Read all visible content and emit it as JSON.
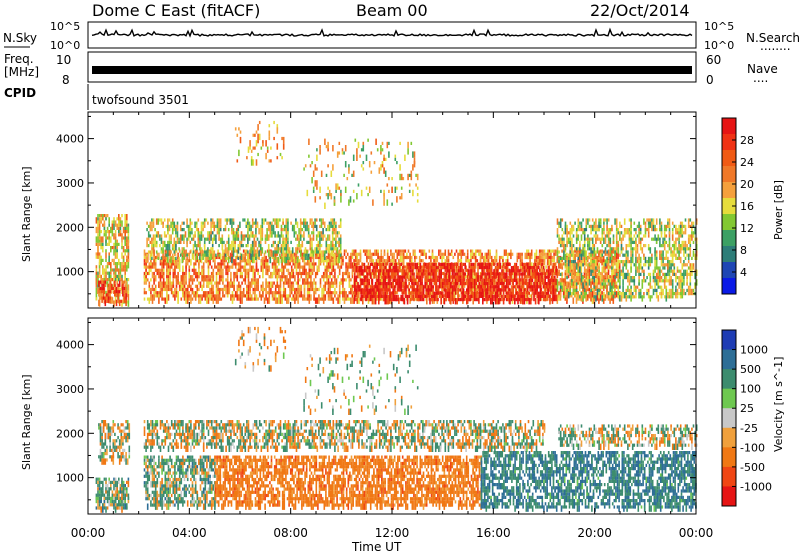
{
  "header": {
    "title_left": "Dome C East (fitACF)",
    "title_center": "Beam 00",
    "title_right": "22/Oct/2014"
  },
  "strips": {
    "nsky_label": "N.Sky",
    "nsky_top_tick": "10^5",
    "nsky_bottom_tick": "10^0",
    "nsearch_label": "N.Search",
    "nsearch_marker": "........",
    "freq_label_line1": "Freq.",
    "freq_label_line2": "[MHz]",
    "freq_tick_top": "10",
    "freq_tick_bottom": "8",
    "nave_tick_top": "60",
    "nave_tick_bottom": "0",
    "nave_label": "Nave",
    "nave_marker": "....",
    "cpid_label": "CPID",
    "cpid_value": "twofsound 3501"
  },
  "chart_data": [
    {
      "type": "heatmap",
      "quantity": "Power",
      "ylabel": "Slant Range [km]",
      "xlabel": "",
      "xlim": [
        "00:00",
        "24:00"
      ],
      "ylim": [
        180,
        4600
      ],
      "y_ticks": [
        1000,
        2000,
        3000,
        4000
      ],
      "colorbar": {
        "label": "Power [dB]",
        "ticks": [
          "4",
          "8",
          "12",
          "16",
          "20",
          "24",
          "28"
        ],
        "colors": [
          "#0a1ae6",
          "#1e46b4",
          "#2d7d78",
          "#3ca064",
          "#82c832",
          "#e6dc3c",
          "#f5a03c",
          "#f07828",
          "#f05a14",
          "#f03214",
          "#e61414"
        ]
      },
      "regions": [
        {
          "t0": 0.3,
          "t1": 1.6,
          "r0": 350,
          "r1": 2300,
          "level": 16,
          "density": 0.55
        },
        {
          "t0": 0.4,
          "t1": 1.5,
          "r0": 350,
          "r1": 800,
          "level": 24,
          "density": 0.65
        },
        {
          "t0": 2.2,
          "t1": 21.0,
          "r0": 350,
          "r1": 1500,
          "level": 20,
          "density": 0.55
        },
        {
          "t0": 2.3,
          "t1": 10.0,
          "r0": 1300,
          "r1": 2200,
          "level": 14,
          "density": 0.45
        },
        {
          "t0": 10.5,
          "t1": 18.5,
          "r0": 350,
          "r1": 1200,
          "level": 27,
          "density": 0.65
        },
        {
          "t0": 18.5,
          "t1": 24.0,
          "r0": 400,
          "r1": 2200,
          "level": 14,
          "density": 0.45
        },
        {
          "t0": 5.8,
          "t1": 7.8,
          "r0": 3500,
          "r1": 4400,
          "level": 18,
          "density": 0.12
        },
        {
          "t0": 8.5,
          "t1": 13.0,
          "r0": 2500,
          "r1": 4000,
          "level": 16,
          "density": 0.1
        }
      ]
    },
    {
      "type": "heatmap",
      "quantity": "Velocity",
      "ylabel": "Slant Range [km]",
      "xlabel": "Time UT",
      "xlim": [
        "00:00",
        "24:00"
      ],
      "x_ticks": [
        "00:00",
        "04:00",
        "08:00",
        "12:00",
        "16:00",
        "20:00",
        "00:00"
      ],
      "ylim": [
        180,
        4600
      ],
      "y_ticks": [
        1000,
        2000,
        3000,
        4000
      ],
      "colorbar": {
        "label": "Velocity [m s^-1]",
        "ticks": [
          "1000",
          "500",
          "100",
          "25",
          "-25",
          "-100",
          "-500",
          "-1000"
        ],
        "colors": [
          "#1e3cb4",
          "#2d6e96",
          "#3c8c6e",
          "#6ec850",
          "#c8c8c8",
          "#f0a03c",
          "#f07814",
          "#f04614",
          "#e61414"
        ]
      },
      "regions": [
        {
          "t0": 0.3,
          "t1": 1.6,
          "r0": 350,
          "r1": 1000,
          "level": 100,
          "density": 0.6
        },
        {
          "t0": 0.4,
          "t1": 1.6,
          "r0": 1400,
          "r1": 2300,
          "level": 0,
          "density": 0.45
        },
        {
          "t0": 2.2,
          "t1": 18.0,
          "r0": 1700,
          "r1": 2300,
          "level": 0,
          "density": 0.5
        },
        {
          "t0": 2.2,
          "t1": 5.0,
          "r0": 350,
          "r1": 1500,
          "level": 100,
          "density": 0.55
        },
        {
          "t0": 5.0,
          "t1": 15.5,
          "r0": 350,
          "r1": 1500,
          "level": -300,
          "density": 0.6
        },
        {
          "t0": 15.5,
          "t1": 24.0,
          "r0": 350,
          "r1": 1600,
          "level": 300,
          "density": 0.55
        },
        {
          "t0": 18.5,
          "t1": 24.0,
          "r0": 1700,
          "r1": 2200,
          "level": 0,
          "density": 0.45
        },
        {
          "t0": 5.8,
          "t1": 7.8,
          "r0": 3500,
          "r1": 4400,
          "level": -100,
          "density": 0.1
        },
        {
          "t0": 8.5,
          "t1": 13.0,
          "r0": 2500,
          "r1": 4000,
          "level": 50,
          "density": 0.08
        }
      ]
    }
  ]
}
